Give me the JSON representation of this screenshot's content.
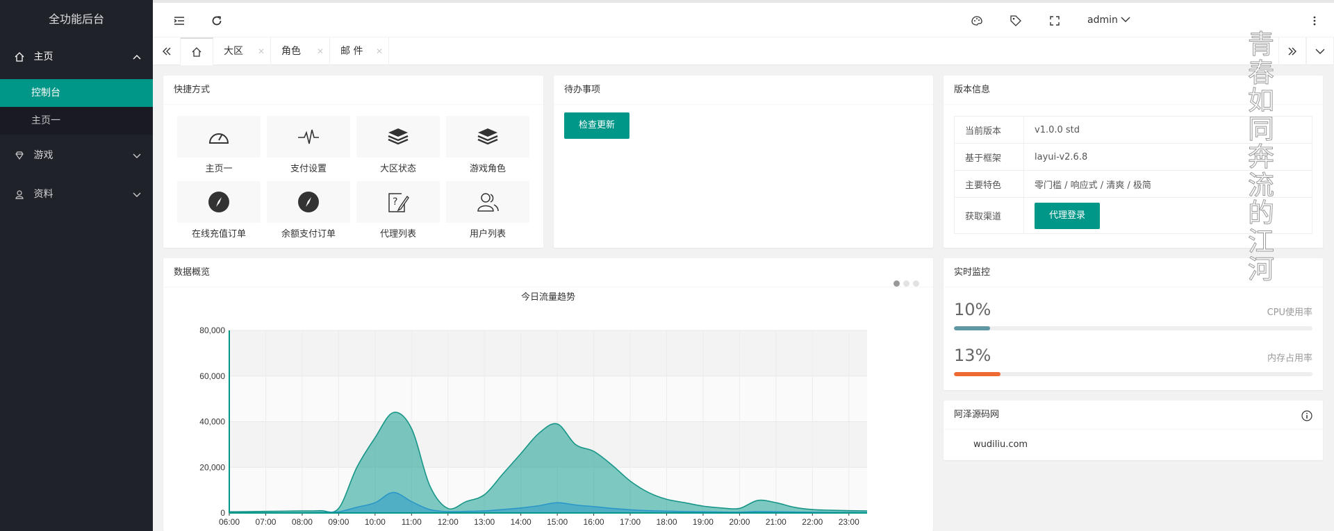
{
  "app": {
    "title": "全功能后台"
  },
  "sidebar": {
    "home": {
      "label": "主页"
    },
    "home_children": [
      {
        "label": "控制台"
      },
      {
        "label": "主页一"
      }
    ],
    "game": {
      "label": "游戏"
    },
    "data": {
      "label": "资料"
    }
  },
  "header": {
    "user": "admin"
  },
  "tabs": [
    {
      "label": "大区"
    },
    {
      "label": "角色"
    },
    {
      "label": "邮 件"
    }
  ],
  "shortcuts": {
    "title": "快捷方式",
    "items": [
      {
        "label": "主页一",
        "icon": "dashboard-icon"
      },
      {
        "label": "支付设置",
        "icon": "pulse-icon"
      },
      {
        "label": "大区状态",
        "icon": "layers-icon"
      },
      {
        "label": "游戏角色",
        "icon": "layers-icon"
      },
      {
        "label": "在线充值订单",
        "icon": "compass-icon"
      },
      {
        "label": "余额支付订单",
        "icon": "compass-icon"
      },
      {
        "label": "代理列表",
        "icon": "question-edit-icon"
      },
      {
        "label": "用户列表",
        "icon": "users-icon"
      }
    ]
  },
  "todo": {
    "title": "待办事项",
    "button": "检查更新"
  },
  "version": {
    "title": "版本信息",
    "rows": [
      {
        "key": "当前版本",
        "value": "v1.0.0 std"
      },
      {
        "key": "基于框架",
        "value": "layui-v2.6.8"
      },
      {
        "key": "主要特色",
        "value": "零门槛 / 响应式 / 清爽 / 极简"
      },
      {
        "key": "获取渠道",
        "button": "代理登录"
      }
    ]
  },
  "overview": {
    "title": "数据概览"
  },
  "monitor": {
    "title": "实时监控",
    "cpu": {
      "value": "10%",
      "label": "CPU使用率",
      "fraction": 0.1,
      "color": "#5f97a2"
    },
    "mem": {
      "value": "13%",
      "label": "内存占用率",
      "fraction": 0.13,
      "color": "#ee6a33"
    }
  },
  "azeb": {
    "title": "阿泽源码网",
    "link": "wudiliu.com"
  },
  "watermark": "青春如同奔流的江河",
  "colors": {
    "accent": "#009688",
    "sidebar": "#20222a"
  },
  "chart_data": {
    "type": "area",
    "title": "今日流量趋势",
    "categories": [
      "06:00",
      "07:00",
      "08:00",
      "09:00",
      "10:00",
      "11:00",
      "12:00",
      "13:00",
      "14:00",
      "15:00",
      "16:00",
      "17:00",
      "18:00",
      "19:00",
      "20:00",
      "21:00",
      "22:00",
      "23:00"
    ],
    "x": [
      6,
      6.5,
      7,
      7.5,
      8,
      8.5,
      9,
      9.5,
      10,
      10.5,
      11,
      11.5,
      12,
      12.5,
      13,
      13.5,
      14,
      14.5,
      15,
      15.5,
      16,
      16.5,
      17,
      17.5,
      18,
      18.5,
      19,
      19.5,
      20,
      20.5,
      21,
      21.5,
      22,
      22.5,
      23,
      23.5
    ],
    "series": [
      {
        "values": [
          500,
          600,
          700,
          800,
          900,
          1000,
          2000,
          20000,
          33000,
          44000,
          37000,
          12000,
          2000,
          5000,
          8000,
          17000,
          26000,
          35000,
          39000,
          30000,
          27000,
          21000,
          14000,
          9000,
          6000,
          4500,
          3000,
          2200,
          2000,
          5500,
          4500,
          2500,
          1500,
          1200,
          1000,
          900
        ]
      },
      {
        "values": [
          100,
          100,
          100,
          100,
          100,
          200,
          500,
          2500,
          4500,
          9000,
          5000,
          1500,
          600,
          700,
          900,
          1500,
          2200,
          3200,
          4500,
          3500,
          2800,
          2000,
          1400,
          1000,
          800,
          600,
          500,
          400,
          350,
          600,
          500,
          400,
          300,
          250,
          200,
          150
        ]
      }
    ],
    "ylim": [
      0,
      80000
    ],
    "yticks": [
      "0",
      "20,000",
      "40,000",
      "60,000",
      "80,000"
    ],
    "grid": true
  }
}
